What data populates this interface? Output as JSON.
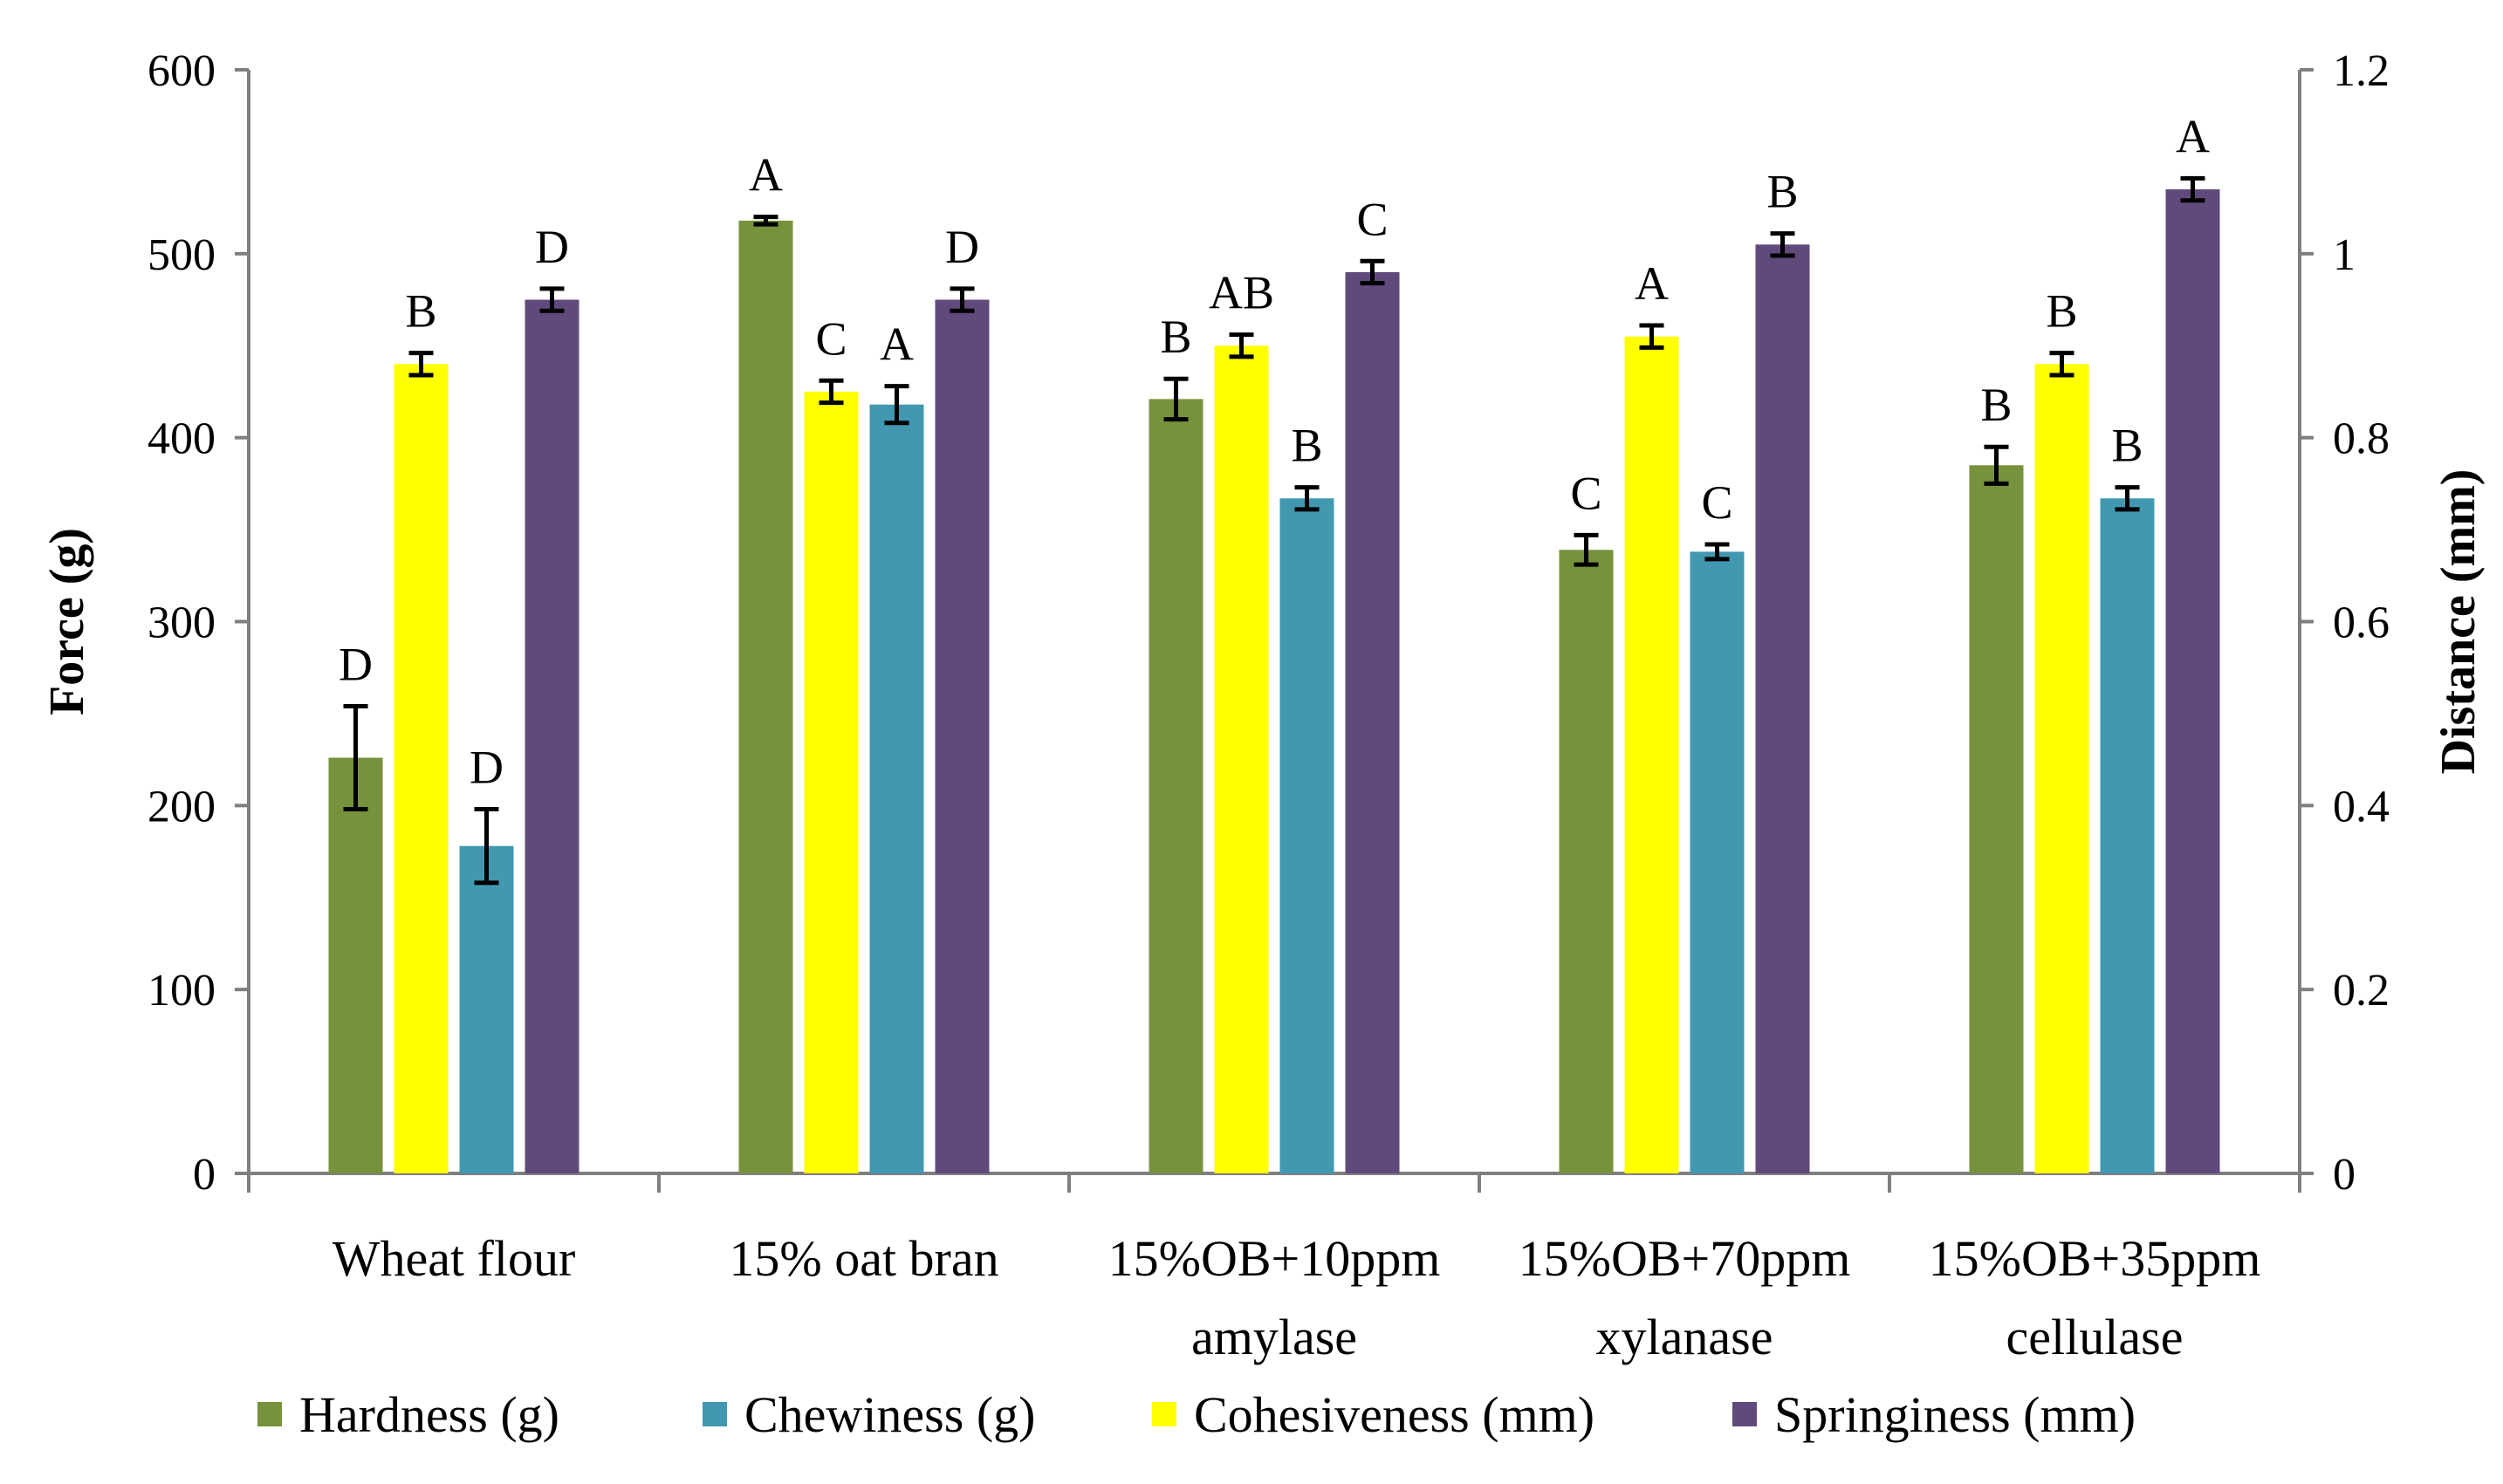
{
  "chart_data": {
    "type": "bar",
    "categories": [
      [
        "Wheat flour"
      ],
      [
        "15% oat bran"
      ],
      [
        "15%OB+10ppm",
        "amylase"
      ],
      [
        "15%OB+70ppm",
        "xylanase"
      ],
      [
        "15%OB+35ppm",
        "cellulase"
      ]
    ],
    "ylabel": "Force (g)",
    "y2label": "Distance (mm)",
    "ylim": [
      0,
      600
    ],
    "y2lim": [
      0,
      1.2
    ],
    "yticks": [
      "0",
      "100",
      "200",
      "300",
      "400",
      "500",
      "600"
    ],
    "y2ticks": [
      "0",
      "0.2",
      "0.4",
      "0.6",
      "0.8",
      "1",
      "1.2"
    ],
    "grid": false,
    "legend_position": "bottom",
    "series": [
      {
        "name": "Hardness (g)",
        "axis": "left",
        "color": "#76923c",
        "values": [
          226,
          518,
          421,
          339,
          385
        ],
        "errors": [
          28,
          2,
          11,
          8,
          10
        ],
        "labels": [
          "D",
          "A",
          "B",
          "C",
          "B"
        ]
      },
      {
        "name": "Cohesiveness (mm)",
        "axis": "right",
        "color": "#ffff00",
        "values": [
          0.88,
          0.85,
          0.9,
          0.91,
          0.88
        ],
        "errors": [
          0.012,
          0.012,
          0.012,
          0.012,
          0.012
        ],
        "labels": [
          "B",
          "C",
          "AB",
          "A",
          "B"
        ]
      },
      {
        "name": "Chewiness (g)",
        "axis": "left",
        "color": "#4198b0",
        "values": [
          178,
          418,
          367,
          338,
          367
        ],
        "errors": [
          20,
          10,
          6,
          4,
          6
        ],
        "labels": [
          "D",
          "A",
          "B",
          "C",
          "B"
        ]
      },
      {
        "name": "Springiness (mm)",
        "axis": "right",
        "color": "#604a7b",
        "values": [
          0.95,
          0.95,
          0.98,
          1.01,
          1.07
        ],
        "errors": [
          0.012,
          0.012,
          0.012,
          0.012,
          0.012
        ],
        "labels": [
          "D",
          "D",
          "C",
          "B",
          "A"
        ]
      }
    ],
    "legend_order": [
      "Hardness (g)",
      "Chewiness (g)",
      "Cohesiveness (mm)",
      "Springiness (mm)"
    ]
  }
}
